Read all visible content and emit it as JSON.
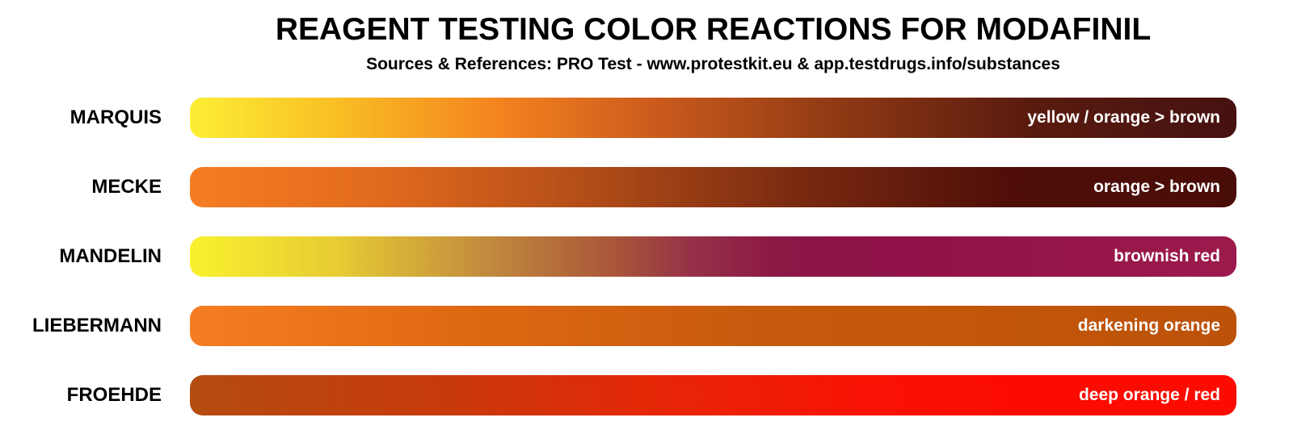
{
  "header": {
    "title": "REAGENT TESTING COLOR REACTIONS FOR MODAFINIL",
    "subtitle": "Sources & References: PRO Test - www.protestkit.eu & app.testdrugs.info/substances"
  },
  "chart_data": {
    "type": "table",
    "title": "REAGENT TESTING COLOR REACTIONS FOR MODAFINIL",
    "subtitle": "Sources & References: PRO Test - www.protestkit.eu & app.testdrugs.info/substances",
    "columns": [
      "reagent",
      "color_reaction"
    ],
    "background": "#FFFFFF",
    "label_color": "#000000",
    "text_color_on_bars": "#FFFFFF",
    "rows": [
      {
        "reagent": "MARQUIS",
        "reaction": "yellow / orange > brown",
        "gradient_stops": [
          "#FCEF35",
          "#F9BE24",
          "#F3811F",
          "#CC5C1D",
          "#8F3914",
          "#5A1B0F",
          "#451110"
        ],
        "css": "background:linear-gradient(90deg,#FCEF35 0%,#F9BE24 14%,#F3811F 30%,#CC5C1D 44%,#8F3914 62%,#5A1B0F 80%,#451110 100%)"
      },
      {
        "reagent": "MECKE",
        "reaction": "orange > brown",
        "gradient_stops": [
          "#F67D22",
          "#E26A1E",
          "#B24D18",
          "#7A2A10",
          "#4F0F08",
          "#490D07"
        ],
        "css": "background:linear-gradient(90deg,#F67D22 0%,#E26A1E 18%,#B24D18 38%,#7A2A10 58%,#4F0F08 78%,#490D07 100%)"
      },
      {
        "reagent": "MANDELIN",
        "reaction": "brownish red",
        "gradient_stops": [
          "#F9F12E",
          "#E7CC33",
          "#C28C3E",
          "#AB5839",
          "#953148",
          "#8C1845",
          "#8F1248",
          "#9C1A4C"
        ],
        "css": "background:linear-gradient(90deg,#F9F12E 0%,#E7CC33 14%,#C28C3E 28%,#AB5839 40%,#953148 48%,#8C1845 56%,#8F1248 67%,#9C1A4C 100%)"
      },
      {
        "reagent": "LIEBERMANN",
        "reaction": "darkening orange",
        "gradient_stops": [
          "#F67D22",
          "#E06913",
          "#C65A0D",
          "#BC5208"
        ],
        "css": "background:linear-gradient(90deg,#F67D22 0%,#E06913 25%,#C65A0D 55%,#BC5208 100%)"
      },
      {
        "reagent": "FROEHDE",
        "reaction": "deep orange / red",
        "gradient_stops": [
          "#B44C10",
          "#C83A0B",
          "#E62606",
          "#F91204",
          "#FC0B00"
        ],
        "css": "background:linear-gradient(90deg,#B44C10 0%,#C83A0B 25%,#E62606 45%,#F91204 65%,#FC0B00 80%,#FC0B00 100%)"
      }
    ]
  }
}
